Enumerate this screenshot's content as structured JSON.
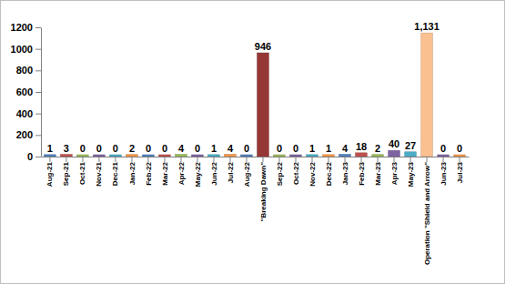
{
  "chart_data": {
    "type": "bar",
    "categories": [
      "Aug-21",
      "Sep-21",
      "Oct-21",
      "Nov-21",
      "Dec-21",
      "Jan-22",
      "Feb-22",
      "Mar-22",
      "Apr-22",
      "May-22",
      "Jun-22",
      "Jul-22",
      "Aug-22",
      "\"Breaking Dawn\"",
      "Sep-22",
      "Oct-22",
      "Nov-22",
      "Dec-22",
      "Jan-23",
      "Feb-23",
      "Mar-23",
      "Apr-23",
      "May-23",
      "Operation \"Shield and Arrow\"",
      "Jun-23",
      "Jul-23"
    ],
    "values": [
      1,
      3,
      0,
      0,
      0,
      2,
      0,
      0,
      4,
      0,
      1,
      4,
      0,
      946,
      0,
      0,
      1,
      1,
      4,
      18,
      2,
      40,
      27,
      1131,
      0,
      0
    ],
    "value_labels": [
      "1",
      "3",
      "0",
      "0",
      "0",
      "2",
      "0",
      "0",
      "4",
      "0",
      "1",
      "4",
      "0",
      "946",
      "0",
      "0",
      "1",
      "1",
      "4",
      "18",
      "2",
      "40",
      "27",
      "1,131",
      "0",
      "0"
    ],
    "colors": [
      "#4F81BD",
      "#C0504D",
      "#9BBB59",
      "#8064A2",
      "#4BACC6",
      "#F79646",
      "#4F81BD",
      "#C0504D",
      "#9BBB59",
      "#8064A2",
      "#4BACC6",
      "#F79646",
      "#4F81BD",
      "#953735",
      "#9BBB59",
      "#8064A2",
      "#4BACC6",
      "#F79646",
      "#4F81BD",
      "#C0504D",
      "#9BBB59",
      "#8064A2",
      "#4BACC6",
      "#FAC090",
      "#8064A2",
      "#F79646"
    ],
    "ylim": [
      0,
      1200
    ],
    "yticks": [
      0,
      200,
      400,
      600,
      800,
      1000,
      1200
    ],
    "grid": false,
    "data_labels": true
  }
}
